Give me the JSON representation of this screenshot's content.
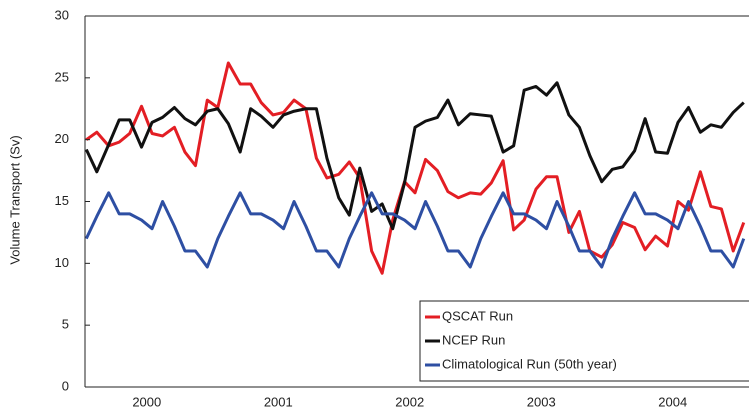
{
  "chart_data": {
    "type": "line",
    "y_label": "Volume Transport (Sv)",
    "x": [
      2000.04,
      2000.12,
      2000.21,
      2000.29,
      2000.37,
      2000.46,
      2000.54,
      2000.62,
      2000.71,
      2000.79,
      2000.87,
      2000.96,
      2001.04,
      2001.12,
      2001.21,
      2001.29,
      2001.37,
      2001.46,
      2001.54,
      2001.62,
      2001.71,
      2001.79,
      2001.87,
      2001.96,
      2002.04,
      2002.12,
      2002.21,
      2002.29,
      2002.37,
      2002.46,
      2002.54,
      2002.62,
      2002.71,
      2002.79,
      2002.87,
      2002.96,
      2003.04,
      2003.12,
      2003.21,
      2003.29,
      2003.37,
      2003.46,
      2003.54,
      2003.62,
      2003.71,
      2003.79,
      2003.87,
      2003.96,
      2004.04,
      2004.12,
      2004.21,
      2004.29,
      2004.37,
      2004.46,
      2004.54,
      2004.62,
      2004.71,
      2004.79,
      2004.87,
      2004.96,
      2005.04
    ],
    "series": [
      {
        "name": "QSCAT Run",
        "color": "#e31e24",
        "values": [
          20,
          20.6,
          19.5,
          19.8,
          20.5,
          22.7,
          20.5,
          20.3,
          21,
          19,
          17.9,
          23.2,
          22.6,
          26.2,
          24.5,
          24.5,
          23,
          22,
          22.2,
          23.2,
          22.5,
          18.5,
          16.9,
          17.2,
          18.2,
          16.9,
          11,
          9.2,
          13.5,
          16.6,
          15.7,
          18.4,
          17.5,
          15.8,
          15.3,
          15.7,
          15.6,
          16.5,
          18.3,
          12.7,
          13.5,
          16,
          17,
          17,
          12.5,
          14.2,
          11,
          10.5,
          11.5,
          13.3,
          12.9,
          11.1,
          12.2,
          11.4,
          15,
          14.3,
          17.4,
          14.6,
          14.4,
          11,
          13.3
        ]
      },
      {
        "name": "NCEP Run",
        "color": "#111111",
        "values": [
          19.2,
          17.4,
          19.6,
          21.6,
          21.6,
          19.4,
          21.4,
          21.8,
          22.6,
          21.7,
          21.2,
          22.3,
          22.5,
          21.3,
          19,
          22.5,
          21.9,
          21,
          22,
          22.3,
          22.5,
          22.5,
          18.5,
          15.3,
          13.9,
          17.7,
          14.2,
          14.8,
          12.8,
          16.5,
          21,
          21.5,
          21.8,
          23.2,
          21.2,
          22.1,
          22,
          21.9,
          19,
          19.5,
          24,
          24.3,
          23.6,
          24.6,
          22,
          21,
          18.7,
          16.6,
          17.6,
          17.8,
          19.1,
          21.7,
          19,
          18.9,
          21.4,
          22.6,
          20.6,
          21.2,
          21,
          22.2,
          23
        ]
      },
      {
        "name": "Climatological Run (50th year)",
        "color": "#2e4fa3",
        "values": [
          12,
          13.8,
          15.7,
          14,
          14,
          13.5,
          12.8,
          15,
          13,
          11,
          11,
          9.7,
          12,
          13.8,
          15.7,
          14,
          14,
          13.5,
          12.8,
          15,
          13,
          11,
          11,
          9.7,
          12,
          13.8,
          15.7,
          14,
          14,
          13.5,
          12.8,
          15,
          13,
          11,
          11,
          9.7,
          12,
          13.8,
          15.7,
          14,
          14,
          13.5,
          12.8,
          15,
          13,
          11,
          11,
          9.7,
          12,
          13.8,
          15.7,
          14,
          14,
          13.5,
          12.8,
          15,
          13,
          11,
          11,
          9.7,
          12
        ]
      }
    ],
    "xlim": [
      2000.03,
      2005.08
    ],
    "xticks": [
      {
        "value": 2000.5,
        "label": "2000"
      },
      {
        "value": 2001.5,
        "label": "2001"
      },
      {
        "value": 2002.5,
        "label": "2002"
      },
      {
        "value": 2003.5,
        "label": "2003"
      },
      {
        "value": 2004.5,
        "label": "2004"
      }
    ],
    "ylim": [
      0,
      30
    ],
    "yticks": [
      0,
      5,
      10,
      15,
      20,
      25,
      30
    ],
    "grid": false,
    "legend": "lower right"
  }
}
